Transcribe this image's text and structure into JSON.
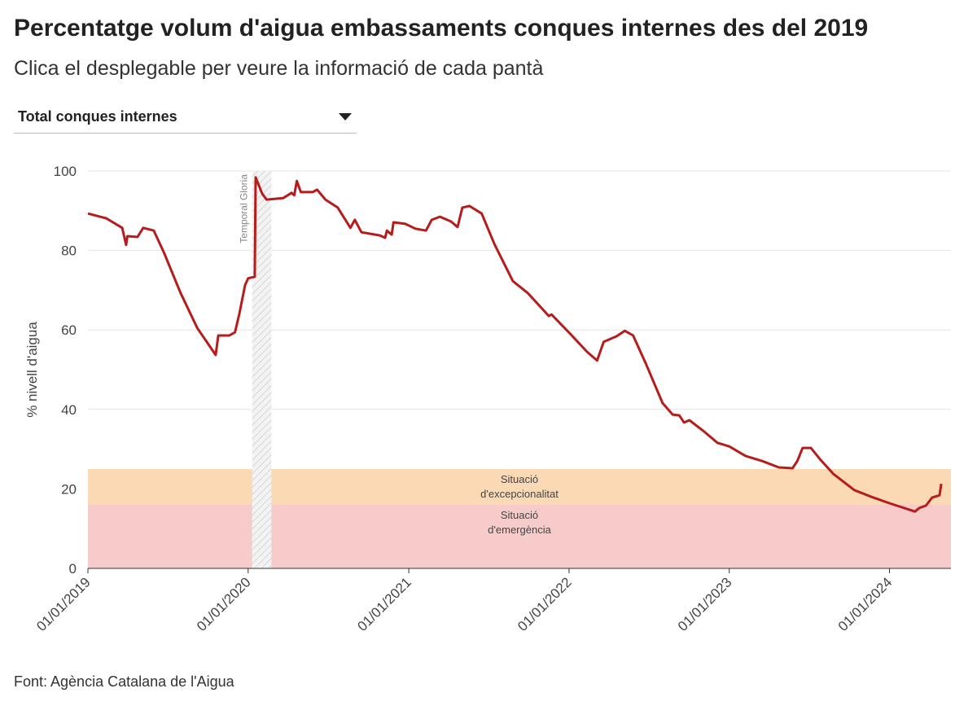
{
  "chart_data": {
    "type": "line",
    "title": "Percentatge volum d'aigua embassaments conques internes des del 2019",
    "subtitle": "Clica el desplegable per veure la informació de cada pantà",
    "dropdown": {
      "selected": "Total conques internes"
    },
    "y_label": "% nivell d'aigua",
    "source": "Font: Agència Catalana de l'Aigua",
    "x": [
      "2019-01-01",
      "2019-02-12",
      "2019-03-20",
      "2019-03-29",
      "2019-04-01",
      "2019-04-24",
      "2019-05-07",
      "2019-05-31",
      "2019-06-23",
      "2019-07-31",
      "2019-09-07",
      "2019-10-19",
      "2019-10-25",
      "2019-11-19",
      "2019-12-02",
      "2019-12-12",
      "2019-12-25",
      "2020-01-01",
      "2020-01-16",
      "2020-01-18",
      "2020-02-02",
      "2020-02-12",
      "2020-03-21",
      "2020-04-09",
      "2020-04-15",
      "2020-04-21",
      "2020-04-30",
      "2020-05-27",
      "2020-06-06",
      "2020-06-25",
      "2020-07-23",
      "2020-08-21",
      "2020-08-31",
      "2020-09-15",
      "2020-10-27",
      "2020-11-08",
      "2020-11-12",
      "2020-11-23",
      "2020-11-27",
      "2020-12-24",
      "2021-01-16",
      "2021-02-09",
      "2021-02-22",
      "2021-03-13",
      "2021-04-07",
      "2021-04-22",
      "2021-05-03",
      "2021-05-19",
      "2021-06-16",
      "2021-07-15",
      "2021-08-26",
      "2021-09-29",
      "2021-11-16",
      "2021-11-22",
      "2022-01-04",
      "2022-02-11",
      "2022-03-06",
      "2022-03-21",
      "2022-04-19",
      "2022-05-08",
      "2022-05-27",
      "2022-06-24",
      "2022-08-02",
      "2022-08-25",
      "2022-09-09",
      "2022-09-20",
      "2022-10-02",
      "2022-11-05",
      "2022-12-05",
      "2023-01-01",
      "2023-02-07",
      "2023-03-17",
      "2023-04-24",
      "2023-05-25",
      "2023-06-05",
      "2023-06-17",
      "2023-07-06",
      "2023-07-28",
      "2023-08-26",
      "2023-10-13",
      "2023-11-21",
      "2024-01-01",
      "2024-02-09",
      "2024-02-28",
      "2024-03-09",
      "2024-03-24",
      "2024-04-07",
      "2024-04-24",
      "2024-04-28"
    ],
    "series": [
      {
        "name": "Total conques internes",
        "color": "#b71c1c",
        "values": [
          89.3,
          88.1,
          85.7,
          81.4,
          83.6,
          83.4,
          85.7,
          85.0,
          79.5,
          69.3,
          60.5,
          53.7,
          58.6,
          58.6,
          59.4,
          64.1,
          71.3,
          73.0,
          73.4,
          98.4,
          94.3,
          92.8,
          93.2,
          94.5,
          93.9,
          97.5,
          94.7,
          94.7,
          95.3,
          92.8,
          90.8,
          85.7,
          87.7,
          84.6,
          83.8,
          83.2,
          85.0,
          84.0,
          87.1,
          86.7,
          85.5,
          85.0,
          87.7,
          88.5,
          87.3,
          85.9,
          90.8,
          91.2,
          89.3,
          81.6,
          72.3,
          69.3,
          63.5,
          63.9,
          59.0,
          54.5,
          52.3,
          57.0,
          58.4,
          59.8,
          58.6,
          51.8,
          41.6,
          38.7,
          38.5,
          36.7,
          37.3,
          34.4,
          31.6,
          30.7,
          28.3,
          27.0,
          25.4,
          25.2,
          27.0,
          30.3,
          30.3,
          27.3,
          23.8,
          19.7,
          18.0,
          16.4,
          15.0,
          14.3,
          15.2,
          15.8,
          17.8,
          18.4,
          21.3
        ]
      }
    ],
    "xlim": [
      "2019-01-01",
      "2024-05-20"
    ],
    "xticks": [
      {
        "value": "2019-01-01",
        "label": "01/01/2019"
      },
      {
        "value": "2020-01-01",
        "label": "01/01/2020"
      },
      {
        "value": "2021-01-01",
        "label": "01/01/2021"
      },
      {
        "value": "2022-01-01",
        "label": "01/01/2022"
      },
      {
        "value": "2023-01-01",
        "label": "01/01/2023"
      },
      {
        "value": "2024-01-01",
        "label": "01/01/2024"
      }
    ],
    "ylim": [
      0,
      100
    ],
    "yticks": [
      0,
      20,
      40,
      60,
      80,
      100
    ],
    "grid": true,
    "bands": [
      {
        "label_lines": [
          "Situació",
          "d'excepcionalitat"
        ],
        "from": 16,
        "to": 25,
        "color": "#fbd9b5"
      },
      {
        "label_lines": [
          "Situació",
          "d'emergència"
        ],
        "from": 0,
        "to": 16,
        "color": "#f8cbcb"
      }
    ],
    "annotations": [
      {
        "label": "Temporal Gloria",
        "x_start": "2020-01-10",
        "x_end": "2020-02-23"
      }
    ]
  }
}
